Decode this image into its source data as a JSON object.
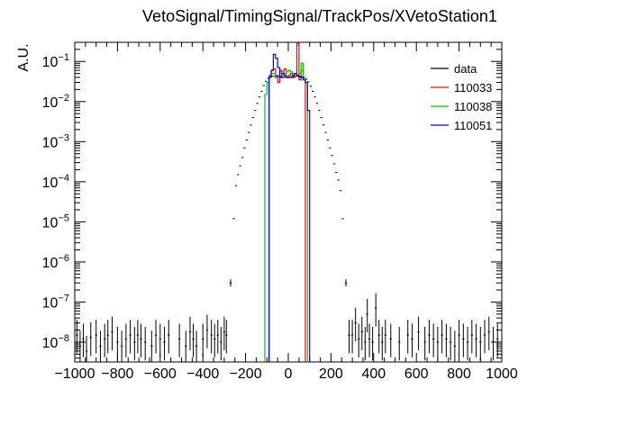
{
  "chart_data": {
    "type": "histogram",
    "title": "VetoSignal/TimingSignal/TrackPos/XVetoStation1",
    "xlabel": "",
    "ylabel": "A.U.",
    "xlim": [
      -1000,
      1000
    ],
    "ylim": [
      3.2e-09,
      0.3
    ],
    "yscale": "log",
    "x_ticks": [
      -1000,
      -800,
      -600,
      -400,
      -200,
      0,
      200,
      400,
      600,
      800,
      1000
    ],
    "y_ticks": [
      {
        "value": 1e-08,
        "mant": "10",
        "exp": "-8"
      },
      {
        "value": 1e-07,
        "mant": "10",
        "exp": "-7"
      },
      {
        "value": 1e-06,
        "mant": "10",
        "exp": "-6"
      },
      {
        "value": 1e-05,
        "mant": "10",
        "exp": "-5"
      },
      {
        "value": 0.0001,
        "mant": "10",
        "exp": "-4"
      },
      {
        "value": 0.001,
        "mant": "10",
        "exp": "-3"
      },
      {
        "value": 0.01,
        "mant": "10",
        "exp": "-2"
      },
      {
        "value": 0.1,
        "mant": "10",
        "exp": "-1"
      }
    ],
    "legend": {
      "placement": "top-right",
      "entries": [
        {
          "label": "data",
          "color": "#000000"
        },
        {
          "label": "110033",
          "color": "#ff0000"
        },
        {
          "label": "110038",
          "color": "#00cc00"
        },
        {
          "label": "110051",
          "color": "#0000ff"
        }
      ]
    },
    "series": [
      {
        "name": "data",
        "style": "points",
        "color": "#000000",
        "bin_width": 10,
        "points": [
          {
            "x": -990,
            "y": 1.5e-08
          },
          {
            "x": -975,
            "y": 8e-09
          },
          {
            "x": -960,
            "y": 1.2e-08
          },
          {
            "x": -945,
            "y": 6e-09
          },
          {
            "x": -925,
            "y": 1.3e-08
          },
          {
            "x": -900,
            "y": 1.5e-08
          },
          {
            "x": -880,
            "y": 8e-09
          },
          {
            "x": -860,
            "y": 1.2e-08
          },
          {
            "x": -845,
            "y": 1.5e-08
          },
          {
            "x": -825,
            "y": 1.8e-08
          },
          {
            "x": -800,
            "y": 1e-08
          },
          {
            "x": -780,
            "y": 8e-09
          },
          {
            "x": -760,
            "y": 1.2e-08
          },
          {
            "x": -740,
            "y": 1.5e-08
          },
          {
            "x": -720,
            "y": 1e-08
          },
          {
            "x": -705,
            "y": 1.5e-08
          },
          {
            "x": -690,
            "y": 1.2e-08
          },
          {
            "x": -670,
            "y": 1e-08
          },
          {
            "x": -640,
            "y": 8e-09
          },
          {
            "x": -620,
            "y": 1.5e-08
          },
          {
            "x": -600,
            "y": 1.2e-08
          },
          {
            "x": -580,
            "y": 1e-08
          },
          {
            "x": -560,
            "y": 1.5e-08
          },
          {
            "x": -510,
            "y": 1.2e-08
          },
          {
            "x": -480,
            "y": 8e-09
          },
          {
            "x": -460,
            "y": 1.8e-08
          },
          {
            "x": -445,
            "y": 1.2e-08
          },
          {
            "x": -430,
            "y": 8e-09
          },
          {
            "x": -400,
            "y": 1.2e-08
          },
          {
            "x": -380,
            "y": 2e-08
          },
          {
            "x": -360,
            "y": 1.5e-08
          },
          {
            "x": -345,
            "y": 1.2e-08
          },
          {
            "x": -330,
            "y": 1.5e-08
          },
          {
            "x": -315,
            "y": 1e-08
          },
          {
            "x": -300,
            "y": 1.8e-08
          },
          {
            "x": -290,
            "y": 1.5e-08
          },
          {
            "x": -270,
            "y": 3e-07
          },
          {
            "x": -255,
            "y": 1.2e-05
          },
          {
            "x": -245,
            "y": 8e-05
          },
          {
            "x": -235,
            "y": 0.00015
          },
          {
            "x": -225,
            "y": 0.00025
          },
          {
            "x": -215,
            "y": 0.0004
          },
          {
            "x": -205,
            "y": 0.0007
          },
          {
            "x": -195,
            "y": 0.0011
          },
          {
            "x": -185,
            "y": 0.0017
          },
          {
            "x": -175,
            "y": 0.0026
          },
          {
            "x": -165,
            "y": 0.004
          },
          {
            "x": -155,
            "y": 0.006
          },
          {
            "x": -145,
            "y": 0.009
          },
          {
            "x": -135,
            "y": 0.013
          },
          {
            "x": -125,
            "y": 0.018
          },
          {
            "x": -115,
            "y": 0.025
          },
          {
            "x": -105,
            "y": 0.032
          },
          {
            "x": -95,
            "y": 0.038
          },
          {
            "x": -85,
            "y": 0.042
          },
          {
            "x": -75,
            "y": 0.043
          },
          {
            "x": -65,
            "y": 0.042
          },
          {
            "x": -55,
            "y": 0.042
          },
          {
            "x": -45,
            "y": 0.043
          },
          {
            "x": -35,
            "y": 0.042
          },
          {
            "x": -25,
            "y": 0.041
          },
          {
            "x": -15,
            "y": 0.041
          },
          {
            "x": -5,
            "y": 0.041
          },
          {
            "x": 5,
            "y": 0.041
          },
          {
            "x": 15,
            "y": 0.041
          },
          {
            "x": 25,
            "y": 0.042
          },
          {
            "x": 35,
            "y": 0.042
          },
          {
            "x": 45,
            "y": 0.043
          },
          {
            "x": 55,
            "y": 0.043
          },
          {
            "x": 65,
            "y": 0.042
          },
          {
            "x": 75,
            "y": 0.039
          },
          {
            "x": 85,
            "y": 0.036
          },
          {
            "x": 95,
            "y": 0.031
          },
          {
            "x": 105,
            "y": 0.024
          },
          {
            "x": 115,
            "y": 0.018
          },
          {
            "x": 125,
            "y": 0.013
          },
          {
            "x": 135,
            "y": 0.009
          },
          {
            "x": 145,
            "y": 0.006
          },
          {
            "x": 155,
            "y": 0.004
          },
          {
            "x": 165,
            "y": 0.0026
          },
          {
            "x": 175,
            "y": 0.0017
          },
          {
            "x": 185,
            "y": 0.0011
          },
          {
            "x": 195,
            "y": 0.0007
          },
          {
            "x": 205,
            "y": 0.00045
          },
          {
            "x": 215,
            "y": 0.00028
          },
          {
            "x": 225,
            "y": 0.00017
          },
          {
            "x": 235,
            "y": 0.00011
          },
          {
            "x": 245,
            "y": 6e-05
          },
          {
            "x": 255,
            "y": 1.2e-05
          },
          {
            "x": 270,
            "y": 3e-07
          },
          {
            "x": 285,
            "y": 1.5e-08
          },
          {
            "x": 300,
            "y": 1.5e-08
          },
          {
            "x": 315,
            "y": 3e-08
          },
          {
            "x": 330,
            "y": 1.2e-08
          },
          {
            "x": 345,
            "y": 1.8e-08
          },
          {
            "x": 360,
            "y": 1e-08
          },
          {
            "x": 370,
            "y": 5e-08
          },
          {
            "x": 380,
            "y": 1.2e-08
          },
          {
            "x": 395,
            "y": 1e-08
          },
          {
            "x": 410,
            "y": 7e-08
          },
          {
            "x": 425,
            "y": 1.5e-08
          },
          {
            "x": 440,
            "y": 1e-08
          },
          {
            "x": 455,
            "y": 1.5e-08
          },
          {
            "x": 480,
            "y": 1.2e-08
          },
          {
            "x": 520,
            "y": 1e-08
          },
          {
            "x": 560,
            "y": 1.5e-08
          },
          {
            "x": 580,
            "y": 1.2e-08
          },
          {
            "x": 610,
            "y": 1.8e-08
          },
          {
            "x": 640,
            "y": 1e-08
          },
          {
            "x": 660,
            "y": 1.5e-08
          },
          {
            "x": 680,
            "y": 1.2e-08
          },
          {
            "x": 700,
            "y": 1e-08
          },
          {
            "x": 720,
            "y": 1.5e-08
          },
          {
            "x": 740,
            "y": 1.2e-08
          },
          {
            "x": 760,
            "y": 1e-08
          },
          {
            "x": 780,
            "y": 8e-09
          },
          {
            "x": 800,
            "y": 1.5e-08
          },
          {
            "x": 820,
            "y": 1.2e-08
          },
          {
            "x": 840,
            "y": 1e-08
          },
          {
            "x": 860,
            "y": 1.5e-08
          },
          {
            "x": 880,
            "y": 1.2e-08
          },
          {
            "x": 900,
            "y": 1e-08
          },
          {
            "x": 920,
            "y": 1.5e-08
          },
          {
            "x": 940,
            "y": 1.8e-08
          },
          {
            "x": 960,
            "y": 1e-08
          },
          {
            "x": 980,
            "y": 1.2e-08
          }
        ]
      },
      {
        "name": "110033",
        "style": "step",
        "color": "#ff0000",
        "edges": [
          -90,
          -80,
          -70,
          -60,
          -50,
          -40,
          -30,
          -20,
          -10,
          0,
          10,
          20,
          30,
          40,
          50,
          60,
          70,
          80
        ],
        "values": [
          0.045,
          0.06,
          0.065,
          0.045,
          0.03,
          0.06,
          0.04,
          0.065,
          0.04,
          0.045,
          0.05,
          0.04,
          0.05,
          0.28,
          0.035,
          0.06,
          0.035
        ]
      },
      {
        "name": "110038",
        "style": "step",
        "color": "#00cc00",
        "edges": [
          -110,
          -100,
          -90,
          -80,
          -70,
          -60,
          -50,
          -40,
          -30,
          -20,
          -10,
          0,
          10,
          20,
          30,
          40,
          50,
          60,
          70,
          80,
          90
        ],
        "values": [
          0.015,
          0.03,
          0.045,
          0.05,
          0.05,
          0.04,
          0.04,
          0.055,
          0.055,
          0.05,
          0.055,
          0.06,
          0.055,
          0.05,
          0.05,
          0.045,
          0.05,
          0.09,
          0.04,
          0.03
        ]
      },
      {
        "name": "110051",
        "style": "step",
        "color": "#0000ff",
        "edges": [
          -90,
          -80,
          -70,
          -60,
          -50,
          -40,
          -30,
          -20,
          -10,
          0,
          10,
          20,
          30,
          40,
          50,
          60,
          70,
          80,
          90,
          100
        ],
        "values": [
          0.04,
          0.06,
          0.15,
          0.12,
          0.07,
          0.04,
          0.05,
          0.045,
          0.04,
          0.04,
          0.04,
          0.045,
          0.05,
          0.045,
          0.04,
          0.04,
          0.035,
          0.03,
          0.006
        ]
      }
    ]
  }
}
